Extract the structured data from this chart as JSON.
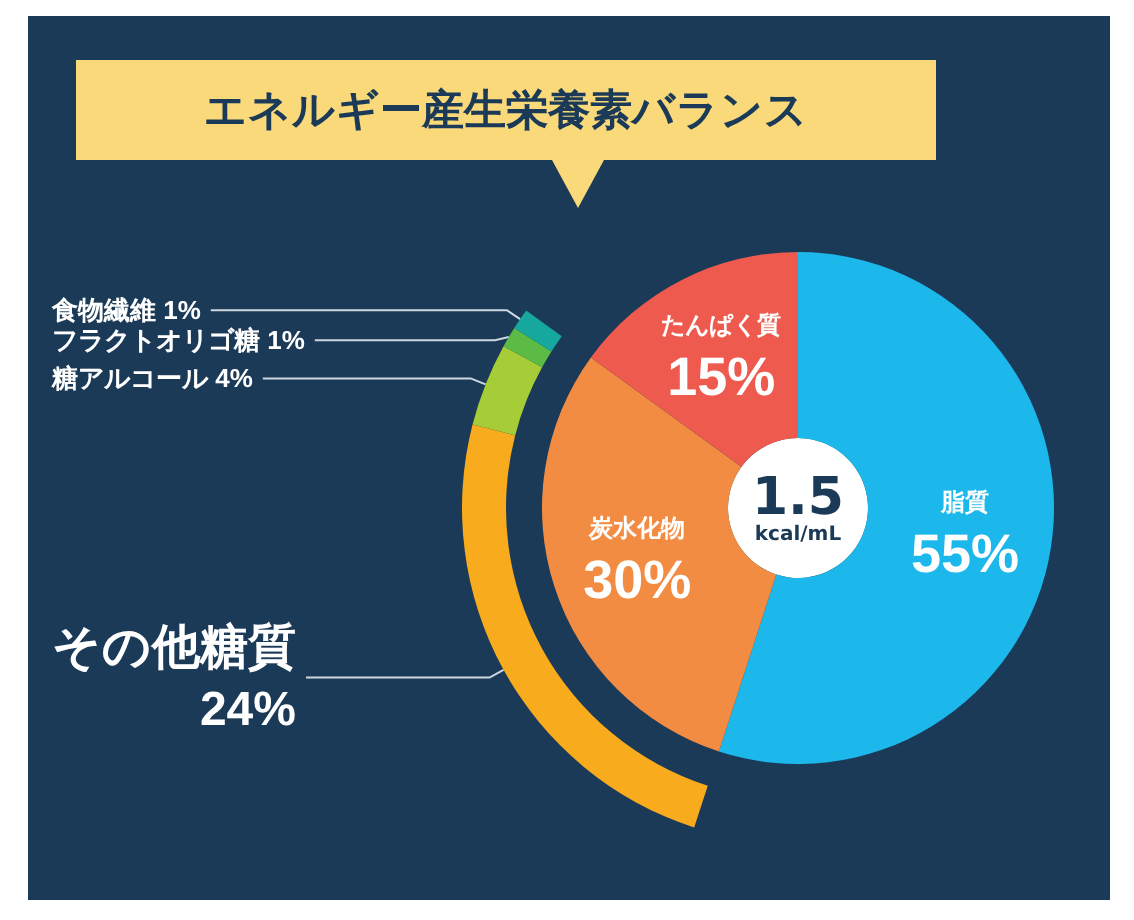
{
  "chart_data": [
    {
      "type": "donut",
      "title": "エネルギー産生栄養素バランス",
      "annotations": [
        "1.5",
        "kcal/mL"
      ],
      "categories": [
        "脂質",
        "炭水化物",
        "たんぱく質"
      ],
      "values": [
        55,
        30,
        15
      ],
      "value_labels": [
        "55%",
        "30%",
        "15%"
      ],
      "colors": [
        "#1cb8ec",
        "#f28c43",
        "#ef5a4e"
      ]
    },
    {
      "type": "donut",
      "categories": [
        "その他糖質",
        "糖アルコール",
        "フラクトオリゴ糖",
        "食物繊維"
      ],
      "values": [
        24,
        4,
        1,
        1
      ],
      "value_labels": [
        "24%",
        "4%",
        "1%",
        "1%"
      ],
      "colors": [
        "#f8ab1c",
        "#a6cc38",
        "#5bbb45",
        "#16a89c"
      ]
    }
  ]
}
